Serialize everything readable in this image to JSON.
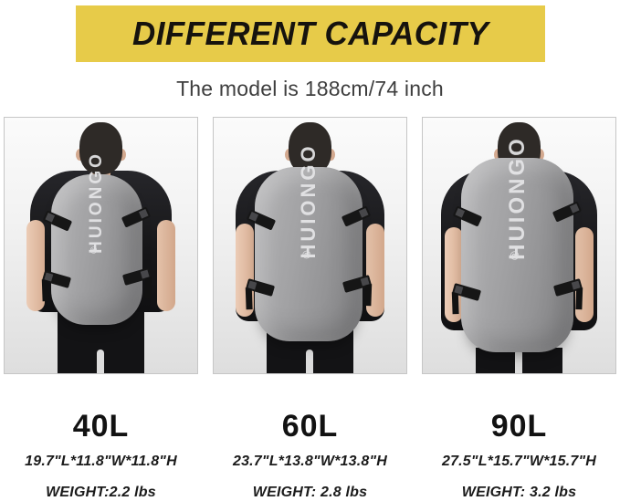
{
  "header": {
    "title": "DIFFERENT CAPACITY",
    "subtitle": "The model is 188cm/74 inch"
  },
  "brand": {
    "bag_logo": "HUIONGO",
    "reg_mark": "®"
  },
  "variants": [
    {
      "capacity": "40L",
      "dimensions": "19.7\"L*11.8\"W*11.8\"H",
      "weight": "WEIGHT:2.2 lbs"
    },
    {
      "capacity": "60L",
      "dimensions": "23.7\"L*13.8\"W*13.8\"H",
      "weight": "WEIGHT: 2.8 lbs"
    },
    {
      "capacity": "90L",
      "dimensions": "27.5\"L*15.7\"W*15.7\"H",
      "weight": "WEIGHT: 3.2 lbs"
    }
  ],
  "colors": {
    "banner_yellow": "#e7cb49",
    "banner_text": "#16130e",
    "subtitle_text": "#3e3e3e",
    "bag_gray": "#9a9a9c",
    "strap_black": "#161616",
    "shirt_black": "#18181a",
    "photo_bg_top": "#fbfbfb",
    "photo_bg_bottom": "#dedede"
  }
}
